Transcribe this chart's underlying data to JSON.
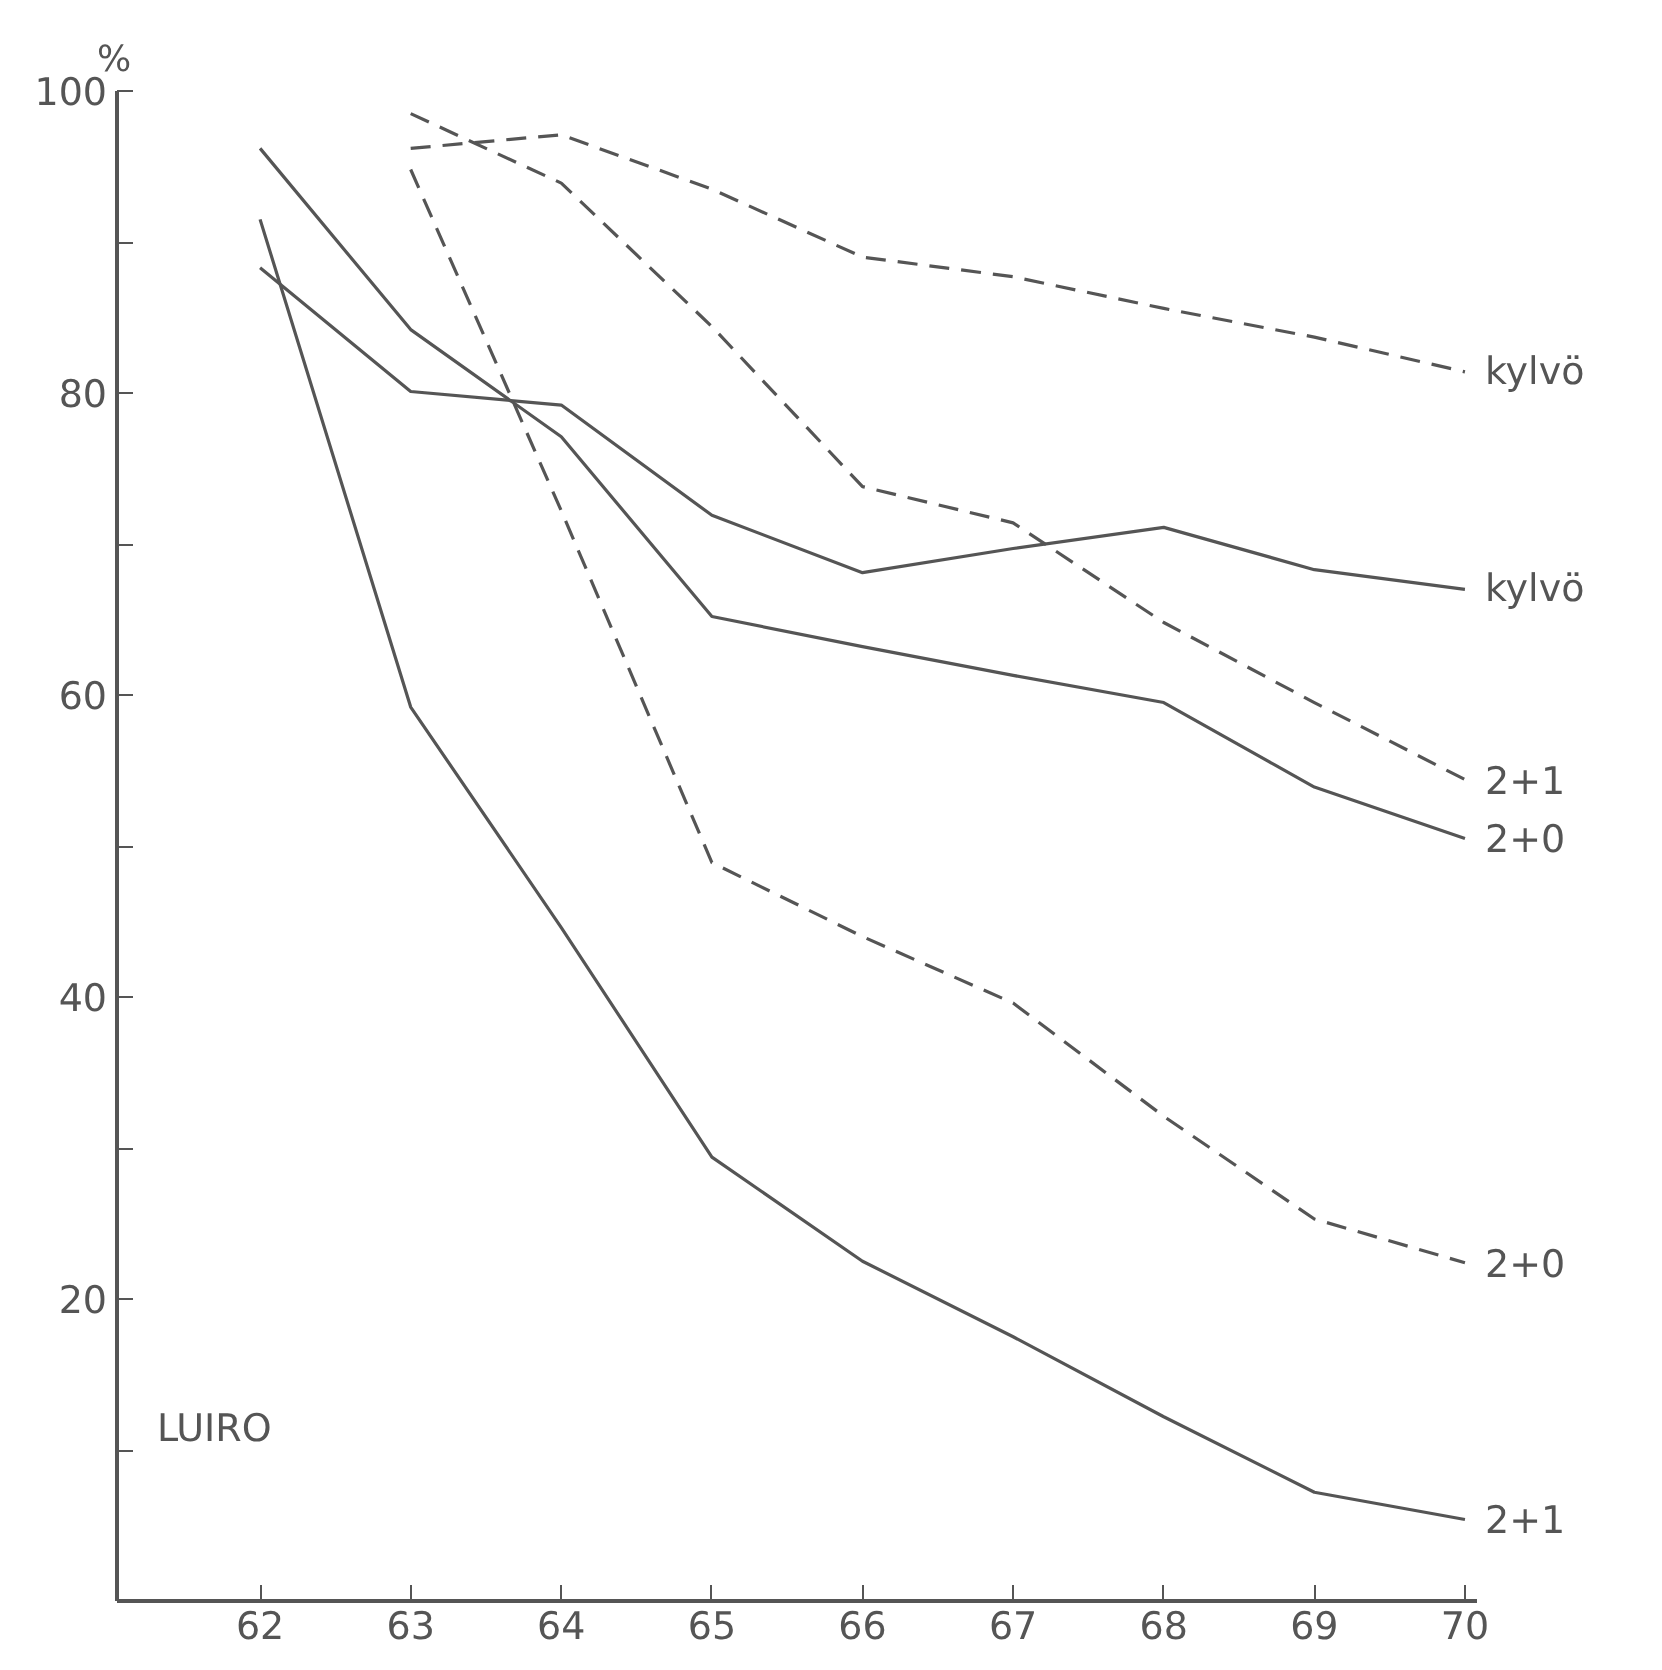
{
  "chart_data": {
    "type": "line",
    "ylabel": "%",
    "annotations": [
      {
        "text": "LUIRO"
      }
    ],
    "x": [
      62,
      63,
      64,
      65,
      66,
      67,
      68,
      69,
      70
    ],
    "xlim": [
      61.05,
      70.08
    ],
    "xticks": [
      62,
      63,
      64,
      65,
      66,
      67,
      68,
      69,
      70
    ],
    "ylim": [
      0,
      100
    ],
    "yticks": [
      {
        "value": 10,
        "label": null
      },
      20,
      {
        "value": 30,
        "label": null
      },
      40,
      {
        "value": 50,
        "label": null
      },
      60,
      {
        "value": 70,
        "label": null
      },
      80,
      {
        "value": 90,
        "label": null
      },
      100
    ],
    "grid": false,
    "marker": "none",
    "series": [
      {
        "name": "kylvö",
        "color": "#555555",
        "line_style": "dashed",
        "values": [
          null,
          96.2,
          97.1,
          93.5,
          89.0,
          87.7,
          85.6,
          83.7,
          81.4
        ]
      },
      {
        "name": "kylvö",
        "color": "#555555",
        "line_style": "solid",
        "values": [
          88.3,
          80.1,
          79.2,
          71.9,
          68.1,
          69.7,
          71.1,
          68.3,
          67.0
        ]
      },
      {
        "name": "2+1",
        "color": "#555555",
        "line_style": "dashed",
        "values": [
          null,
          98.5,
          93.9,
          84.4,
          73.8,
          71.4,
          64.8,
          59.5,
          54.4
        ]
      },
      {
        "name": "2+0",
        "color": "#555555",
        "line_style": "solid",
        "values": [
          96.2,
          84.2,
          77.1,
          65.2,
          63.2,
          61.3,
          59.5,
          53.9,
          50.5
        ]
      },
      {
        "name": "2+0",
        "color": "#555555",
        "line_style": "dashed",
        "values": [
          null,
          94.8,
          72.2,
          48.9,
          44.0,
          39.6,
          32.1,
          25.3,
          22.4
        ]
      },
      {
        "name": "2+1",
        "color": "#555555",
        "line_style": "solid",
        "values": [
          91.5,
          59.2,
          44.6,
          29.4,
          22.5,
          17.5,
          12.2,
          7.2,
          5.4
        ]
      }
    ]
  }
}
